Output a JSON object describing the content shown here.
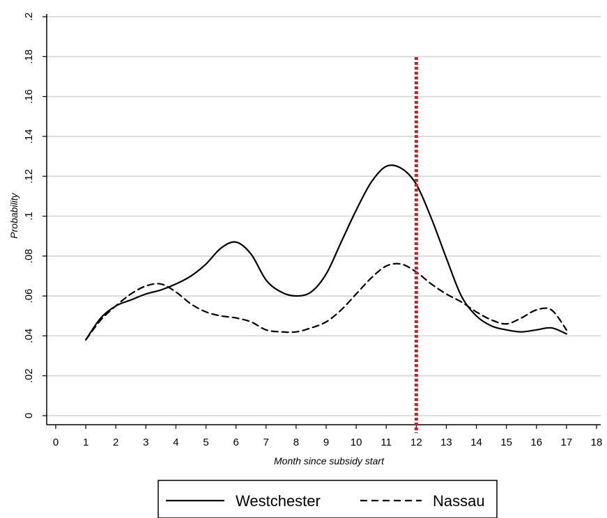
{
  "chart_data": {
    "type": "line",
    "title": "",
    "xlabel": "Month since subsidy start",
    "ylabel": "Probability",
    "xlim": [
      0,
      18
    ],
    "ylim": [
      0,
      0.2
    ],
    "x_ticks": [
      0,
      1,
      2,
      3,
      4,
      5,
      6,
      7,
      8,
      9,
      10,
      11,
      12,
      13,
      14,
      15,
      16,
      17,
      18
    ],
    "x_tick_labels": [
      "0",
      "1",
      "2",
      "3",
      "4",
      "5",
      "6",
      "7",
      "8",
      "9",
      "10",
      "11",
      "12",
      "13",
      "14",
      "15",
      "16",
      "17",
      "18"
    ],
    "y_ticks": [
      0,
      0.02,
      0.04,
      0.06,
      0.08,
      0.1,
      0.12,
      0.14,
      0.16,
      0.18,
      0.2
    ],
    "y_tick_labels": [
      "0",
      ".02",
      ".04",
      ".06",
      ".08",
      ".1",
      ".12",
      ".14",
      ".16",
      ".18",
      ".2"
    ],
    "grid": true,
    "legend_position": "bottom",
    "reference_line": {
      "x": 12,
      "color": "#e8141a",
      "style": "dotted"
    },
    "series": [
      {
        "name": "Westchester",
        "color": "#000000",
        "style": "solid",
        "x": [
          1,
          1.5,
          2,
          2.5,
          3,
          3.5,
          4,
          4.5,
          5,
          5.5,
          6,
          6.5,
          7,
          7.5,
          8,
          8.5,
          9,
          9.5,
          10,
          10.5,
          11,
          11.5,
          12,
          12.5,
          13,
          13.5,
          14,
          14.5,
          15,
          15.5,
          16,
          16.5,
          17
        ],
        "y": [
          0.038,
          0.049,
          0.055,
          0.058,
          0.061,
          0.063,
          0.066,
          0.07,
          0.076,
          0.084,
          0.087,
          0.081,
          0.068,
          0.062,
          0.06,
          0.062,
          0.071,
          0.087,
          0.103,
          0.117,
          0.125,
          0.124,
          0.116,
          0.099,
          0.079,
          0.06,
          0.05,
          0.045,
          0.043,
          0.042,
          0.043,
          0.044,
          0.041
        ]
      },
      {
        "name": "Nassau",
        "color": "#000000",
        "style": "dashed",
        "x": [
          1,
          1.5,
          2,
          2.5,
          3,
          3.5,
          4,
          4.5,
          5,
          5.5,
          6,
          6.5,
          7,
          7.5,
          8,
          8.5,
          9,
          9.5,
          10,
          10.5,
          11,
          11.5,
          12,
          12.5,
          13,
          13.5,
          14,
          14.5,
          15,
          15.5,
          16,
          16.5,
          17
        ],
        "y": [
          0.038,
          0.048,
          0.055,
          0.061,
          0.065,
          0.066,
          0.062,
          0.056,
          0.052,
          0.05,
          0.049,
          0.047,
          0.043,
          0.042,
          0.042,
          0.044,
          0.047,
          0.053,
          0.061,
          0.069,
          0.075,
          0.076,
          0.072,
          0.066,
          0.061,
          0.057,
          0.052,
          0.048,
          0.046,
          0.049,
          0.053,
          0.053,
          0.043
        ]
      }
    ]
  }
}
